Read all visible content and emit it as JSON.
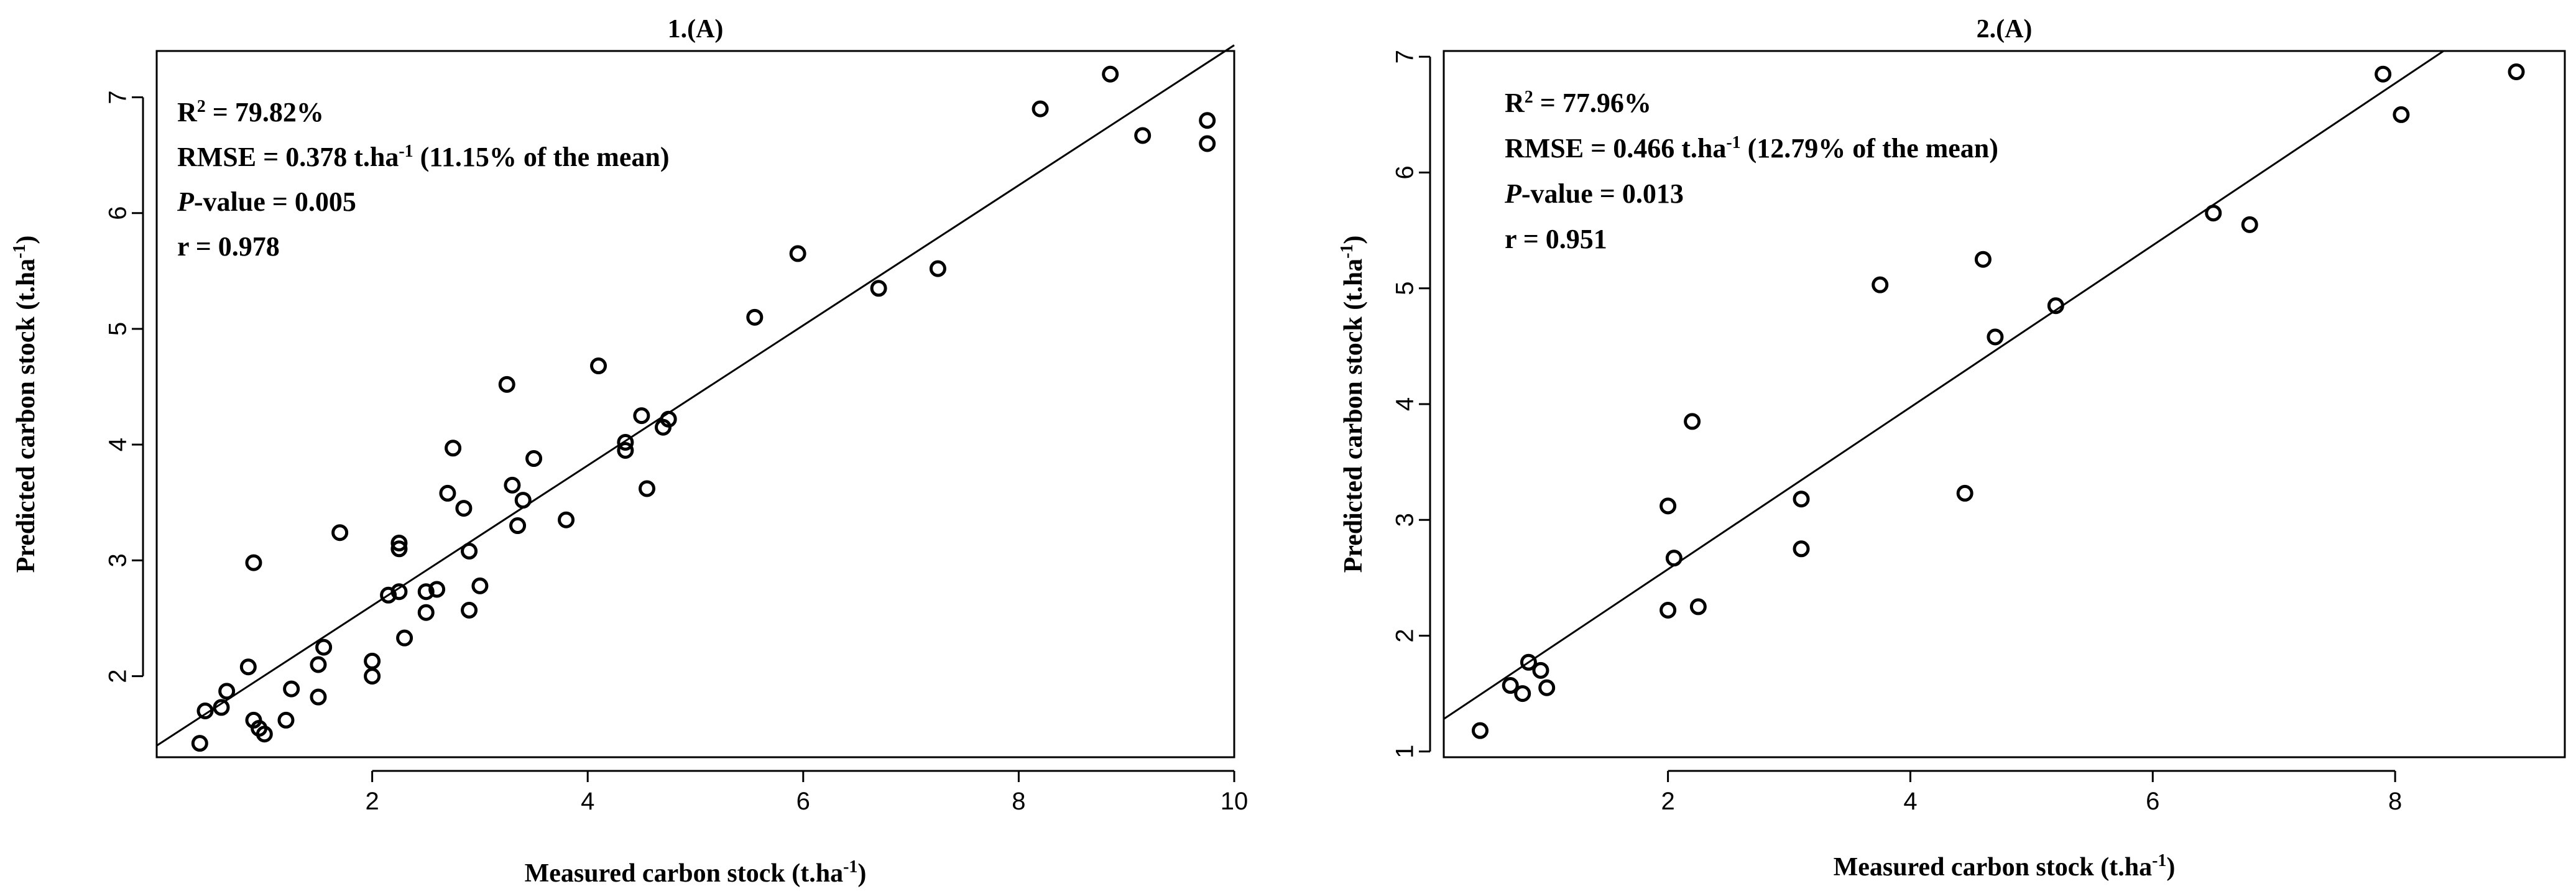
{
  "chart_data": [
    {
      "type": "scatter",
      "title": "1.(A)",
      "xlabel": {
        "main": "Measured carbon stock (t.ha",
        "sup": "-1",
        "end": ")"
      },
      "ylabel": {
        "main": "Predicted carbon stock (t.ha",
        "sup": "-1",
        "end": ")"
      },
      "xlim": [
        0,
        10
      ],
      "ylim": [
        1.3,
        7.4
      ],
      "xticks": [
        2,
        4,
        6,
        8,
        10
      ],
      "yticks": [
        2,
        3,
        4,
        5,
        6,
        7
      ],
      "grid": false,
      "stats": [
        {
          "parts": [
            {
              "t": "R"
            },
            {
              "t": "2",
              "sup": true
            },
            {
              "t": " = 79.82%"
            }
          ]
        },
        {
          "parts": [
            {
              "t": "RMSE = 0.378  t.ha"
            },
            {
              "t": "-1",
              "sup": true
            },
            {
              "t": " (11.15% of the mean)"
            }
          ]
        },
        {
          "parts": [
            {
              "t": "P",
              "italic": true
            },
            {
              "t": "-value = 0.005"
            }
          ]
        },
        {
          "parts": [
            {
              "t": " r = 0.978"
            }
          ]
        }
      ],
      "fit_line": {
        "x": [
          0,
          10
        ],
        "y": [
          1.4,
          7.45
        ]
      },
      "points": [
        [
          0.4,
          1.42
        ],
        [
          0.45,
          1.7
        ],
        [
          0.6,
          1.73
        ],
        [
          0.65,
          1.87
        ],
        [
          0.85,
          2.08
        ],
        [
          0.9,
          1.62
        ],
        [
          0.9,
          2.98
        ],
        [
          0.95,
          1.55
        ],
        [
          1.0,
          1.5
        ],
        [
          1.2,
          1.62
        ],
        [
          1.25,
          1.89
        ],
        [
          1.5,
          1.82
        ],
        [
          1.5,
          2.1
        ],
        [
          1.55,
          2.25
        ],
        [
          1.7,
          3.24
        ],
        [
          2.0,
          2.0
        ],
        [
          2.0,
          2.13
        ],
        [
          2.15,
          2.7
        ],
        [
          2.25,
          2.73
        ],
        [
          2.25,
          3.1
        ],
        [
          2.25,
          3.15
        ],
        [
          2.3,
          2.33
        ],
        [
          2.5,
          2.55
        ],
        [
          2.5,
          2.73
        ],
        [
          2.6,
          2.75
        ],
        [
          2.7,
          3.58
        ],
        [
          2.75,
          3.97
        ],
        [
          2.85,
          3.45
        ],
        [
          2.9,
          2.57
        ],
        [
          2.9,
          3.08
        ],
        [
          3.0,
          2.78
        ],
        [
          3.25,
          4.52
        ],
        [
          3.3,
          3.65
        ],
        [
          3.35,
          3.3
        ],
        [
          3.4,
          3.52
        ],
        [
          3.5,
          3.88
        ],
        [
          3.8,
          3.35
        ],
        [
          4.1,
          4.68
        ],
        [
          4.35,
          3.95
        ],
        [
          4.35,
          4.02
        ],
        [
          4.5,
          4.25
        ],
        [
          4.55,
          3.62
        ],
        [
          4.7,
          4.15
        ],
        [
          4.75,
          4.22
        ],
        [
          5.55,
          5.1
        ],
        [
          5.95,
          5.65
        ],
        [
          6.7,
          5.35
        ],
        [
          7.25,
          5.52
        ],
        [
          8.2,
          6.9
        ],
        [
          8.85,
          7.2
        ],
        [
          9.15,
          6.67
        ],
        [
          9.75,
          6.8
        ],
        [
          9.75,
          6.6
        ]
      ]
    },
    {
      "type": "scatter",
      "title": "2.(A)",
      "xlabel": {
        "main": "Measured carbon stock (t.ha",
        "sup": "-1",
        "end": ")"
      },
      "ylabel": {
        "main": "Predicted carbon stock (t.ha",
        "sup": "-1",
        "end": ")"
      },
      "xlim": [
        0.15,
        9.4
      ],
      "ylim": [
        0.95,
        7.05
      ],
      "xticks": [
        2,
        4,
        6,
        8
      ],
      "yticks": [
        1,
        2,
        3,
        4,
        5,
        6,
        7
      ],
      "grid": false,
      "stats": [
        {
          "parts": [
            {
              "t": "R"
            },
            {
              "t": "2",
              "sup": true
            },
            {
              "t": " = 77.96%"
            }
          ]
        },
        {
          "parts": [
            {
              "t": "RMSE = 0.466 t.ha"
            },
            {
              "t": "-1",
              "sup": true
            },
            {
              "t": " (12.79% of the mean)"
            }
          ]
        },
        {
          "parts": [
            {
              "t": "P",
              "italic": true
            },
            {
              "t": "-value = 0.013"
            }
          ]
        },
        {
          "parts": [
            {
              "t": "r = 0.951"
            }
          ]
        }
      ],
      "fit_line": {
        "x": [
          0.15,
          8.4
        ],
        "y": [
          1.28,
          7.05
        ]
      },
      "points": [
        [
          0.45,
          1.18
        ],
        [
          0.7,
          1.57
        ],
        [
          0.8,
          1.5
        ],
        [
          0.85,
          1.77
        ],
        [
          0.95,
          1.7
        ],
        [
          1.0,
          1.55
        ],
        [
          2.0,
          3.12
        ],
        [
          2.0,
          2.22
        ],
        [
          2.05,
          2.67
        ],
        [
          2.2,
          3.85
        ],
        [
          2.25,
          2.25
        ],
        [
          3.1,
          3.18
        ],
        [
          3.1,
          2.75
        ],
        [
          3.75,
          5.03
        ],
        [
          4.45,
          3.23
        ],
        [
          4.6,
          5.25
        ],
        [
          4.7,
          4.58
        ],
        [
          5.2,
          4.85
        ],
        [
          6.5,
          5.65
        ],
        [
          6.8,
          5.55
        ],
        [
          7.9,
          6.85
        ],
        [
          8.05,
          6.5
        ],
        [
          9.0,
          6.87
        ]
      ]
    }
  ]
}
